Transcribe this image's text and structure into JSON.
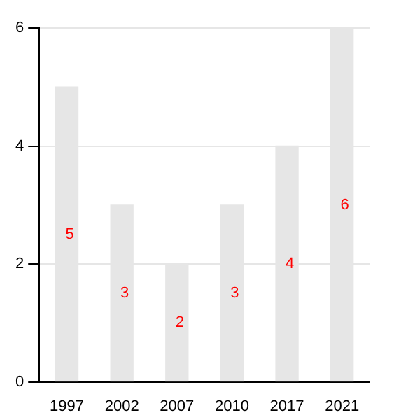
{
  "chart_data": {
    "type": "bar",
    "categories": [
      "1997",
      "2002",
      "2007",
      "2010",
      "2017",
      "2021"
    ],
    "values": [
      5,
      3,
      2,
      3,
      4,
      6
    ],
    "color": "#e6e6e6",
    "ylim": [
      0,
      6
    ],
    "yticks": [
      0,
      2,
      4,
      6
    ],
    "grid": "y",
    "data_labels": true,
    "legend": false
  }
}
